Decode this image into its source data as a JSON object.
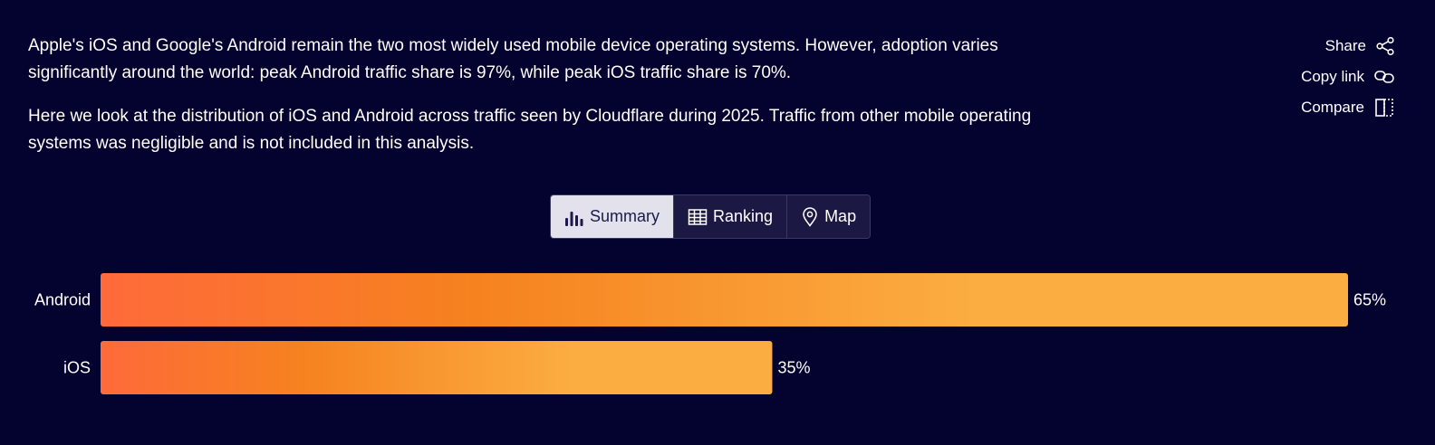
{
  "description": {
    "paragraph1": "Apple's iOS and Google's Android remain the two most widely used mobile device operating systems. However, adoption varies significantly around the world: peak Android traffic share is 97%, while peak iOS traffic share is 70%.",
    "paragraph2": "Here we look at the distribution of iOS and Android across traffic seen by Cloudflare during 2025. Traffic from other mobile operating systems was negligible and is not included in this analysis."
  },
  "actions": {
    "share_label": "Share",
    "copy_link_label": "Copy link",
    "compare_label": "Compare"
  },
  "tabs": [
    {
      "label": "Summary",
      "icon": "bar-chart-icon",
      "active": true
    },
    {
      "label": "Ranking",
      "icon": "table-icon",
      "active": false
    },
    {
      "label": "Map",
      "icon": "map-pin-icon",
      "active": false
    }
  ],
  "colors": {
    "background": "#04022f",
    "bar_gradient_start": "#fe6a3a",
    "bar_gradient_mid": "#f6821f",
    "bar_gradient_end": "#fbad41"
  },
  "chart_data": {
    "type": "bar",
    "orientation": "horizontal",
    "categories": [
      "Android",
      "iOS"
    ],
    "values": [
      65,
      35
    ],
    "value_labels": [
      "65%",
      "35%"
    ],
    "unit": "%",
    "xlim": [
      0,
      65
    ],
    "grid": false,
    "legend": "none"
  }
}
